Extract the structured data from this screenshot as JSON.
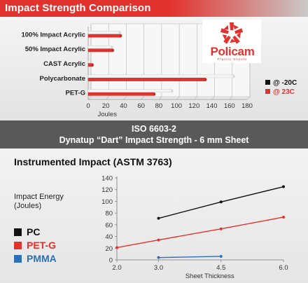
{
  "title": "Impact Strength Comparison",
  "logo": {
    "word": "Policam",
    "sub": "Plastic Sheets"
  },
  "band": {
    "line1": "ISO 6603-2",
    "line2": "Dynatup “Dart” Impact Strength - 6 mm Sheet"
  },
  "section2_title": "Instrumented Impact (ASTM 3763)",
  "colors": {
    "accent": "#e2322d",
    "black": "#111111",
    "blue": "#2f6fb6",
    "bar_light": "#f2f2f2"
  },
  "chart_data": [
    {
      "type": "bar",
      "orientation": "horizontal",
      "categories": [
        "100% Impact Acrylic",
        "50% Impact Acrylic",
        "CAST Acrylic",
        "Polycarbonate",
        "PET-G"
      ],
      "series": [
        {
          "name": "@ -20C",
          "values": [
            36,
            27,
            3,
            165,
            95
          ]
        },
        {
          "name": "@ 23C",
          "values": [
            37,
            28,
            5,
            133,
            75
          ]
        }
      ],
      "xlabel": "Joules",
      "xlim": [
        0,
        180
      ],
      "xticks": [
        "0",
        "20",
        "40",
        "60",
        "80",
        "100",
        "120",
        "140",
        "160",
        "180"
      ],
      "grid": true,
      "legend": "right"
    },
    {
      "type": "line",
      "title": "Instrumented Impact (ASTM 3763)",
      "ylabel_lines": [
        "Impact Energy",
        "(Joules)"
      ],
      "xlabel": "Sheet Thickness",
      "xticks": [
        "2.0",
        "3.0",
        "4.5",
        "6.0"
      ],
      "x_positions": [
        2.0,
        3.0,
        4.5,
        6.0
      ],
      "xlim": [
        2.0,
        6.0
      ],
      "ylim": [
        0,
        140
      ],
      "yticks": [
        "0",
        "10",
        "20",
        "30",
        "40",
        "50",
        "60",
        "70",
        "80",
        "90",
        "100",
        "110",
        "120",
        "130",
        "140"
      ],
      "grid": false,
      "legend": "left",
      "series": [
        {
          "name": "PC",
          "color": "#111111",
          "x": [
            3.0,
            4.5,
            6.0
          ],
          "y": [
            71,
            99,
            125
          ]
        },
        {
          "name": "PET-G",
          "color": "#e2322d",
          "x": [
            2.0,
            3.0,
            4.5,
            6.0
          ],
          "y": [
            21,
            34,
            53,
            73
          ]
        },
        {
          "name": "PMMA",
          "color": "#2f6fb6",
          "x": [
            3.0,
            4.5
          ],
          "y": [
            4,
            6
          ]
        }
      ]
    }
  ]
}
